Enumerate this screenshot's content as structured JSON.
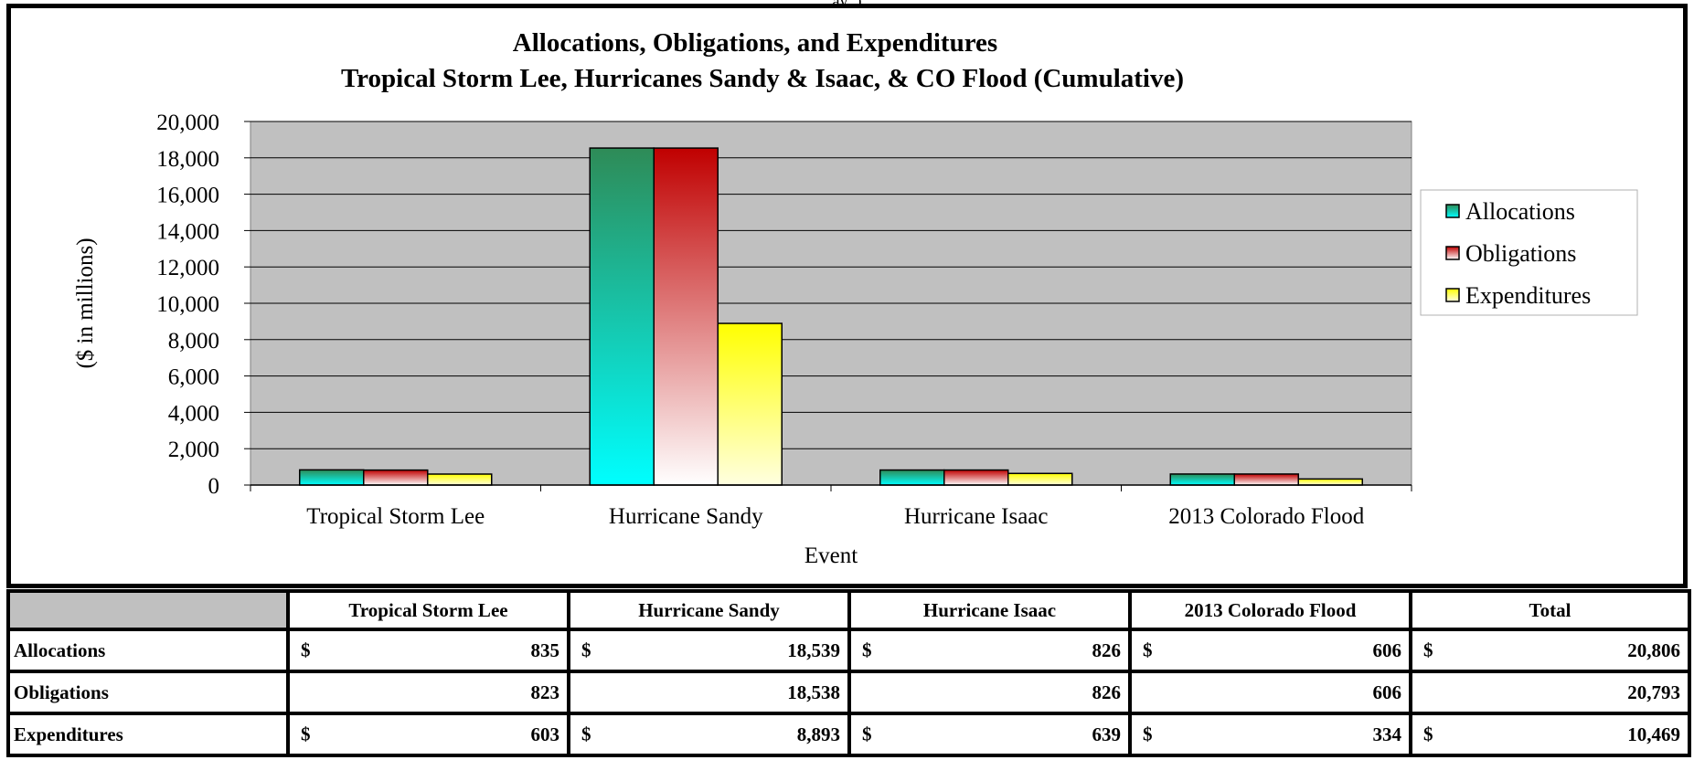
{
  "chart_data": {
    "type": "bar",
    "title": "Allocations, Obligations, and Expenditures",
    "subtitle": "Tropical Storm Lee, Hurricanes Sandy & Isaac, & CO Flood (Cumulative)",
    "xlabel": "Event",
    "ylabel": "($ in millions)",
    "ylim": [
      0,
      20000
    ],
    "yticks": [
      0,
      2000,
      4000,
      6000,
      8000,
      10000,
      12000,
      14000,
      16000,
      18000,
      20000
    ],
    "ytick_labels": [
      "0",
      "2,000",
      "4,000",
      "6,000",
      "8,000",
      "10,000",
      "12,000",
      "14,000",
      "16,000",
      "18,000",
      "20,000"
    ],
    "categories": [
      "Tropical Storm Lee",
      "Hurricane Sandy",
      "Hurricane Isaac",
      "2013 Colorado Flood"
    ],
    "series": [
      {
        "name": "Allocations",
        "values": [
          835,
          18539,
          826,
          606
        ],
        "color_top": "#2e8b57",
        "color_bottom": "#00ffff"
      },
      {
        "name": "Obligations",
        "values": [
          823,
          18538,
          826,
          606
        ],
        "color_top": "#c00000",
        "color_bottom": "#ffffff"
      },
      {
        "name": "Expenditures",
        "values": [
          603,
          8893,
          639,
          334
        ],
        "color_top": "#ffff00",
        "color_bottom": "#ffffe0"
      }
    ],
    "legend_position": "right",
    "grid": true,
    "plot_background": "#c0c0c0"
  },
  "top_fragment": "ay ,)",
  "table": {
    "columns": [
      "Tropical Storm Lee",
      "Hurricane Sandy",
      "Hurricane Isaac",
      "2013 Colorado Flood",
      "Total"
    ],
    "rows": [
      {
        "label": "Allocations",
        "currency": "$",
        "values": [
          "835",
          "18,539",
          "826",
          "606",
          "20,806"
        ]
      },
      {
        "label": "Obligations",
        "currency": "",
        "values": [
          "823",
          "18,538",
          "826",
          "606",
          "20,793"
        ]
      },
      {
        "label": "Expenditures",
        "currency": "$",
        "values": [
          "603",
          "8,893",
          "639",
          "334",
          "10,469"
        ]
      }
    ]
  }
}
